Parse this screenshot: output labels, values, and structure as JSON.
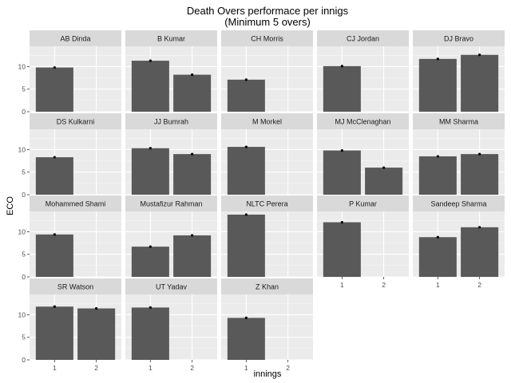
{
  "chart_data": {
    "type": "bar",
    "title": "Death Overs performace per innigs",
    "subtitle": "(Minimum 5 overs)",
    "xlabel": "innings",
    "ylabel": "ECO",
    "categories": [
      "1",
      "2"
    ],
    "ylim": [
      0,
      14.5
    ],
    "yticks": [
      0,
      5,
      10
    ],
    "grid": true,
    "layout": "facet_wrap 5 columns",
    "colors": {
      "bar": "#595959",
      "panel": "#ebebeb",
      "grid_major": "#ffffff",
      "grid_minor": "#f5f5f5",
      "strip": "#d9d9d9",
      "point": "#000000"
    },
    "facets": [
      {
        "name": "AB Dinda",
        "values": [
          9.8,
          null
        ]
      },
      {
        "name": "B Kumar",
        "values": [
          11.3,
          8.2
        ]
      },
      {
        "name": "CH Morris",
        "values": [
          7.1,
          null
        ]
      },
      {
        "name": "CJ Jordan",
        "values": [
          10.1,
          null
        ]
      },
      {
        "name": "DJ Bravo",
        "values": [
          11.7,
          12.6
        ]
      },
      {
        "name": "DS Kulkarni",
        "values": [
          8.3,
          null
        ]
      },
      {
        "name": "JJ Bumrah",
        "values": [
          10.3,
          9.0
        ]
      },
      {
        "name": "M Morkel",
        "values": [
          10.6,
          null
        ]
      },
      {
        "name": "MJ McClenaghan",
        "values": [
          9.8,
          6.0
        ]
      },
      {
        "name": "MM Sharma",
        "values": [
          8.5,
          9.0
        ]
      },
      {
        "name": "Mohammed Shami",
        "values": [
          9.4,
          null
        ]
      },
      {
        "name": "Mustafizur Rahman",
        "values": [
          6.7,
          9.2
        ]
      },
      {
        "name": "NLTC Perera",
        "values": [
          13.8,
          null
        ]
      },
      {
        "name": "P Kumar",
        "values": [
          12.1,
          null
        ]
      },
      {
        "name": "Sandeep Sharma",
        "values": [
          8.8,
          11.0
        ]
      },
      {
        "name": "SR Watson",
        "values": [
          11.8,
          11.4
        ]
      },
      {
        "name": "UT Yadav",
        "values": [
          11.6,
          null
        ]
      },
      {
        "name": "Z Khan",
        "values": [
          9.3,
          null
        ]
      }
    ]
  }
}
